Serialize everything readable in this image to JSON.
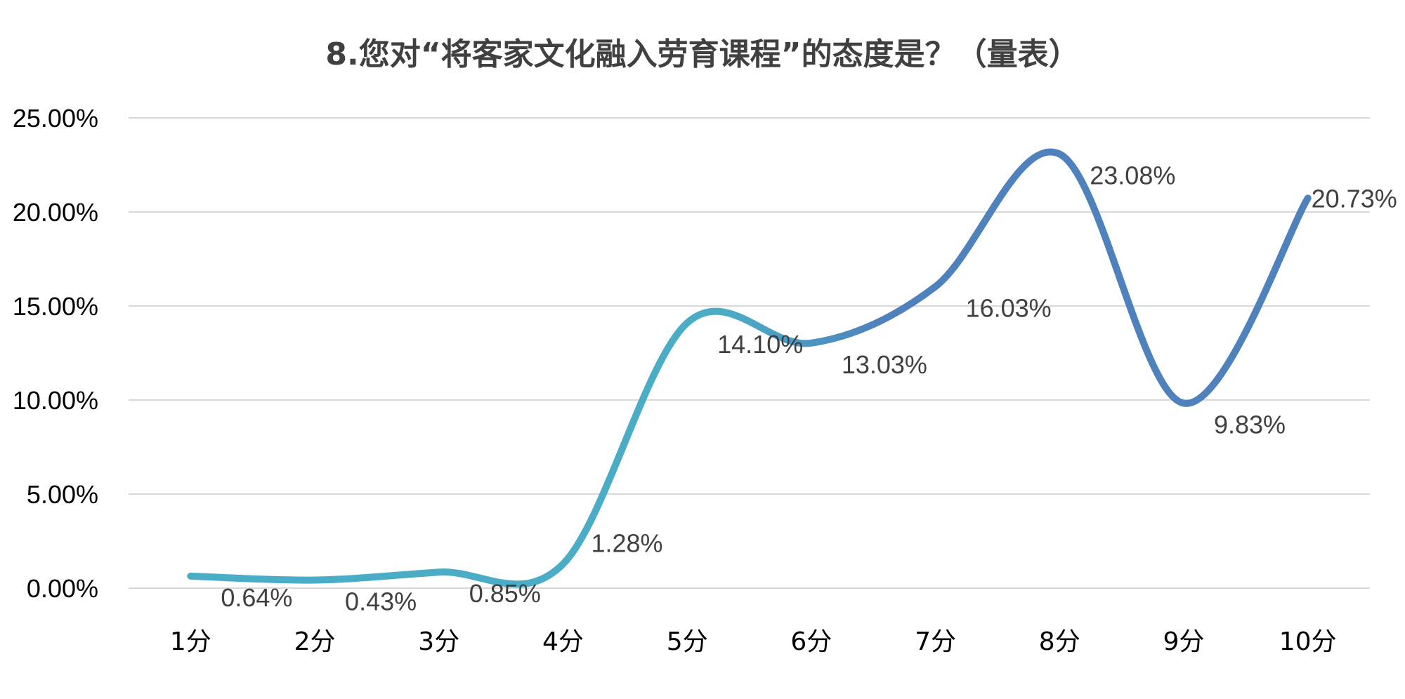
{
  "chart_data": {
    "type": "line",
    "title": "8.您对“将客家文化融入劳育课程”的态度是？（量表）",
    "xlabel": "",
    "ylabel": "",
    "categories": [
      "1分",
      "2分",
      "3分",
      "4分",
      "5分",
      "6分",
      "7分",
      "8分",
      "9分",
      "10分"
    ],
    "series": [
      {
        "values": [
          0.64,
          0.43,
          0.85,
          1.28,
          14.1,
          13.03,
          16.03,
          23.08,
          9.83,
          20.73
        ],
        "labels": [
          "0.64%",
          "0.43%",
          "0.85%",
          "1.28%",
          "14.10%",
          "13.03%",
          "16.03%",
          "23.08%",
          "9.83%",
          "20.73%"
        ]
      }
    ],
    "yticks": [
      "0.00%",
      "5.00%",
      "10.00%",
      "15.00%",
      "20.00%",
      "25.00%"
    ],
    "ylim": [
      0,
      25
    ],
    "grid": true,
    "legend": "none",
    "line_smooth": true,
    "colors": {
      "line_start": "#4bacc6",
      "line_end": "#4f81bd",
      "grid": "#d9d9d9",
      "text": "#404040"
    }
  }
}
